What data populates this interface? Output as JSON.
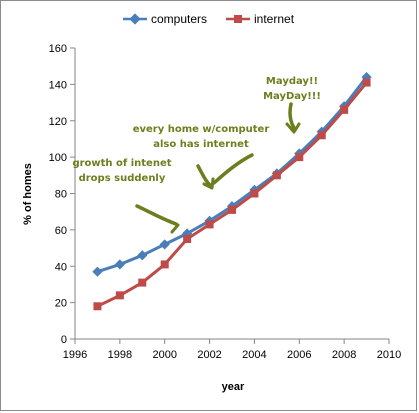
{
  "chart_data": {
    "type": "line",
    "title": "",
    "xlabel": "year",
    "ylabel": "% of homes",
    "xlim": [
      1996,
      2010
    ],
    "ylim": [
      0,
      160
    ],
    "x_ticks": [
      1996,
      1998,
      2000,
      2002,
      2004,
      2006,
      2008,
      2010
    ],
    "y_ticks": [
      0,
      20,
      40,
      60,
      80,
      100,
      120,
      140,
      160
    ],
    "grid": false,
    "legend_position": "top",
    "x": [
      1997,
      1998,
      1999,
      2000,
      2001,
      2002,
      2003,
      2004,
      2005,
      2006,
      2007,
      2008,
      2009
    ],
    "series": [
      {
        "name": "computers",
        "color": "#4a7ebb",
        "marker": "diamond",
        "values": [
          37,
          41,
          46,
          52,
          58,
          65,
          73,
          82,
          91,
          102,
          114,
          128,
          144
        ]
      },
      {
        "name": "internet",
        "color": "#be4b48",
        "marker": "square",
        "values": [
          18,
          24,
          31,
          41,
          55,
          63,
          71,
          80,
          90,
          100,
          112,
          126,
          141
        ]
      }
    ],
    "annotations": [
      {
        "lines": [
          "growth of intenet",
          "drops suddenly"
        ]
      },
      {
        "lines": [
          "every home w/computer",
          "also has internet"
        ]
      },
      {
        "lines": [
          "Mayday!!",
          "MayDay!!!"
        ]
      }
    ],
    "annotation_color": "#6b7f1e"
  }
}
